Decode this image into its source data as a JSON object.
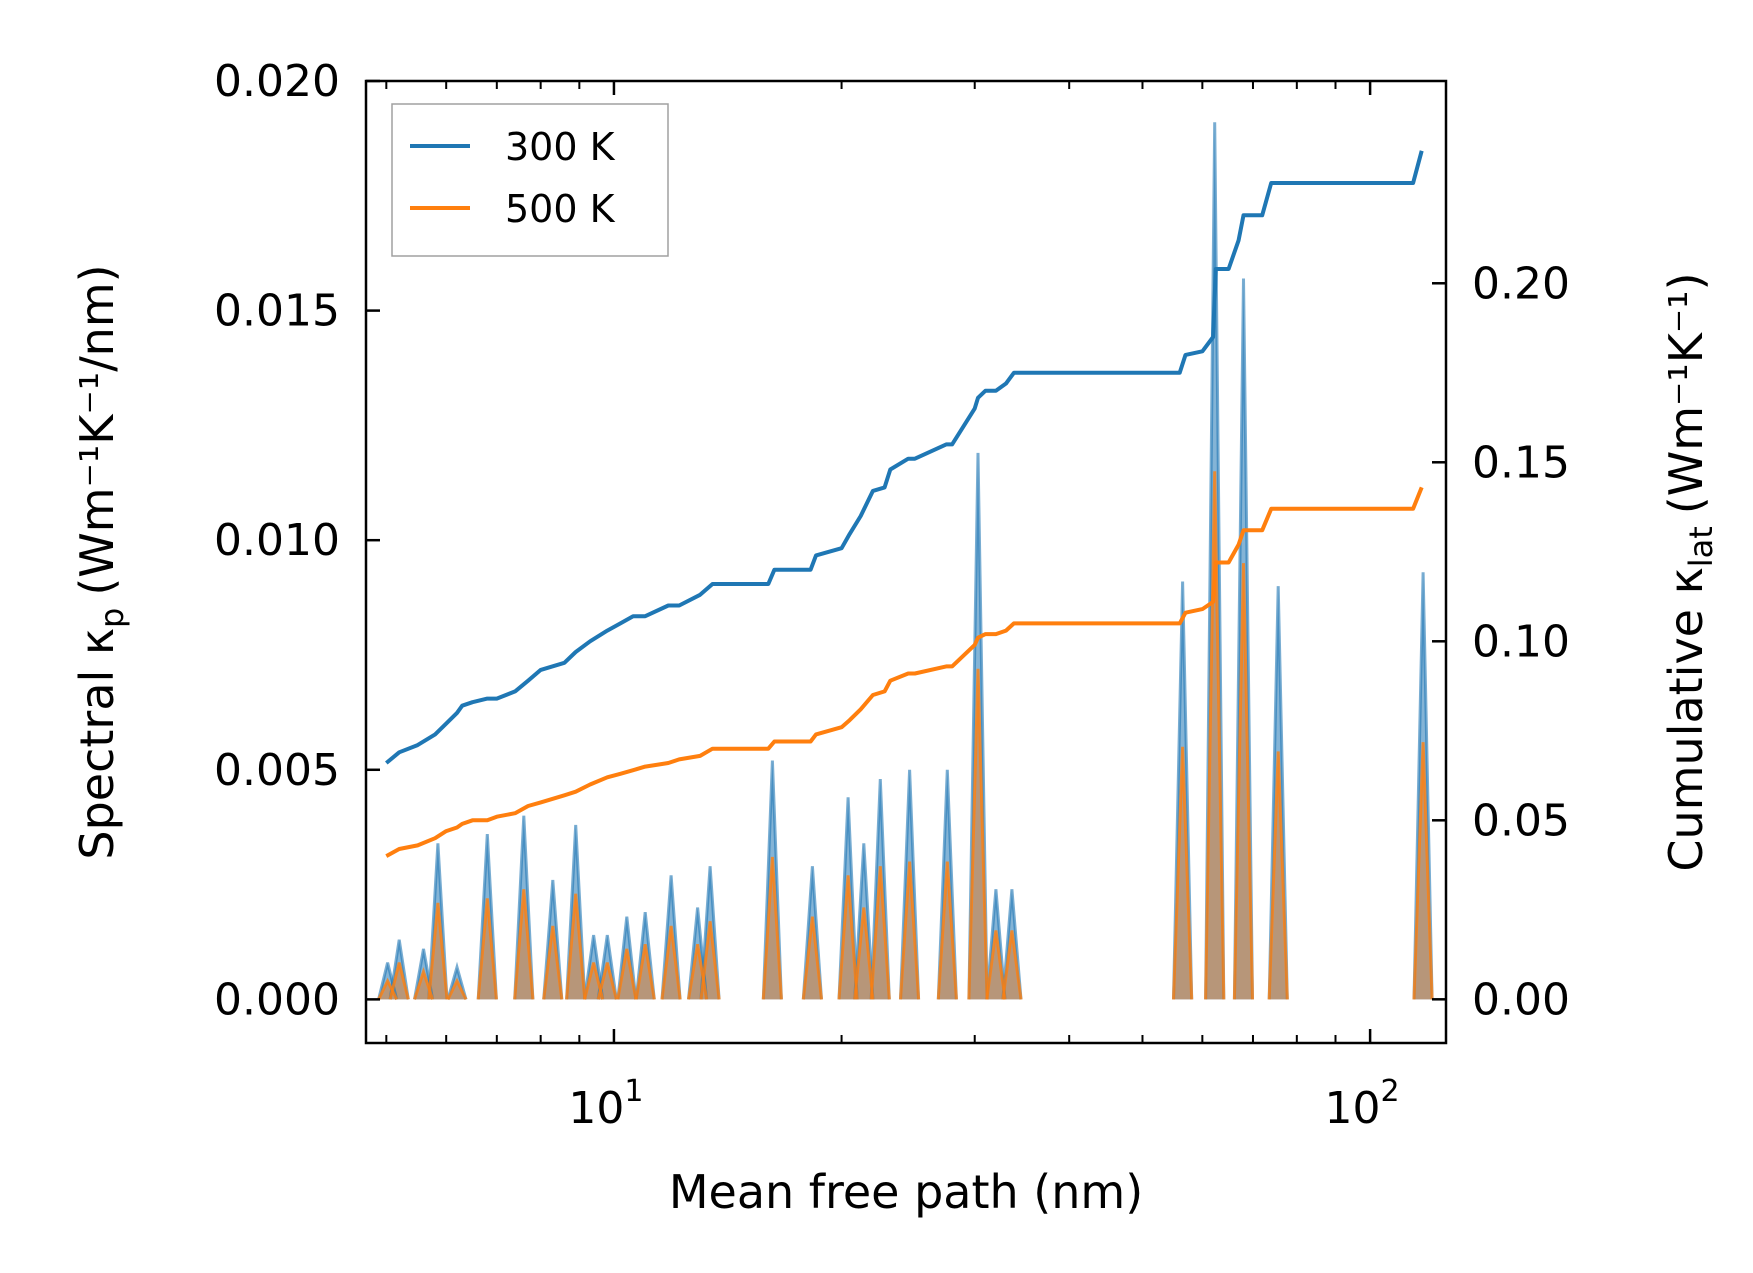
{
  "chart_data": {
    "type": "line",
    "xlabel": "Mean free path (nm)",
    "ylabel": "Spectral κ",
    "ylabel_sub": "p",
    "ylabel_units": "(Wm⁻¹K⁻¹/nm)",
    "y2label": "Cumulative κ",
    "y2label_sub": "lat",
    "y2label_units": "(Wm⁻¹K⁻¹)",
    "xscale": "log",
    "xlim": [
      4.7,
      126
    ],
    "ylim": [
      -0.00095,
      0.02
    ],
    "y2lim": [
      -0.0122,
      0.2565
    ],
    "x_ticks": [
      {
        "value": 10,
        "base": "10",
        "exp": "1"
      },
      {
        "value": 100,
        "base": "10",
        "exp": "2"
      }
    ],
    "y_ticks": [
      {
        "value": 0.0,
        "label": "0.000"
      },
      {
        "value": 0.005,
        "label": "0.005"
      },
      {
        "value": 0.01,
        "label": "0.010"
      },
      {
        "value": 0.015,
        "label": "0.015"
      },
      {
        "value": 0.02,
        "label": "0.020"
      }
    ],
    "y2_ticks": [
      {
        "value": 0.0,
        "label": "0.00"
      },
      {
        "value": 0.05,
        "label": "0.05"
      },
      {
        "value": 0.1,
        "label": "0.10"
      },
      {
        "value": 0.15,
        "label": "0.15"
      },
      {
        "value": 0.2,
        "label": "0.20"
      }
    ],
    "legend": {
      "position": "top-left",
      "entries": [
        {
          "label": "300 K",
          "color": "#1f77b4"
        },
        {
          "label": "500 K",
          "color": "#ff7f0e"
        }
      ]
    },
    "spectral_peaks": {
      "x": [
        5.02,
        5.2,
        5.6,
        5.85,
        6.2,
        6.8,
        7.6,
        8.3,
        8.9,
        9.4,
        9.8,
        10.4,
        11.0,
        11.9,
        12.9,
        13.4,
        16.2,
        18.3,
        20.4,
        21.4,
        22.5,
        24.6,
        27.6,
        30.3,
        32.0,
        33.6,
        56.5,
        62.3,
        68.0,
        75.6,
        117.5
      ],
      "series": [
        {
          "name": "300 K",
          "color": "#1f77b4",
          "values": [
            0.0008,
            0.0013,
            0.0011,
            0.0034,
            0.0007,
            0.0036,
            0.004,
            0.0026,
            0.0038,
            0.0014,
            0.0014,
            0.0018,
            0.0019,
            0.0027,
            0.002,
            0.0029,
            0.0052,
            0.0029,
            0.0044,
            0.0034,
            0.0048,
            0.005,
            0.005,
            0.0119,
            0.0024,
            0.0024,
            0.0091,
            0.0191,
            0.0157,
            0.009,
            0.0093
          ]
        },
        {
          "name": "500 K",
          "color": "#ff7f0e",
          "values": [
            0.0004,
            0.0008,
            0.0006,
            0.0021,
            0.0004,
            0.0022,
            0.0024,
            0.0016,
            0.0023,
            0.0008,
            0.0008,
            0.0011,
            0.0012,
            0.0016,
            0.0012,
            0.0017,
            0.0031,
            0.0018,
            0.0027,
            0.002,
            0.0029,
            0.003,
            0.003,
            0.0072,
            0.0015,
            0.0015,
            0.0055,
            0.0115,
            0.0095,
            0.0054,
            0.0056
          ]
        }
      ]
    },
    "cumulative": [
      {
        "name": "300 K",
        "color": "#1f77b4",
        "x": [
          5.0,
          5.2,
          5.5,
          5.8,
          6.0,
          6.2,
          6.3,
          6.5,
          6.8,
          7.0,
          7.4,
          7.7,
          8.0,
          8.6,
          8.9,
          9.3,
          9.8,
          10.2,
          10.6,
          11.0,
          11.8,
          12.2,
          13.0,
          13.5,
          16.0,
          16.3,
          18.2,
          18.5,
          20.0,
          20.5,
          21.2,
          22.0,
          22.8,
          23.2,
          24.5,
          25.0,
          27.5,
          28.0,
          30.0,
          30.3,
          31.0,
          32.0,
          33.0,
          33.8,
          35.0,
          56.0,
          57.0,
          60.0,
          62.0,
          62.5,
          65.0,
          67.0,
          68.0,
          72.0,
          74.0,
          75.5,
          111.0,
          114.0,
          117.0
        ],
        "values": [
          0.066,
          0.069,
          0.071,
          0.074,
          0.077,
          0.08,
          0.082,
          0.083,
          0.084,
          0.084,
          0.086,
          0.089,
          0.092,
          0.094,
          0.097,
          0.1,
          0.103,
          0.105,
          0.107,
          0.107,
          0.11,
          0.11,
          0.113,
          0.116,
          0.116,
          0.12,
          0.12,
          0.124,
          0.126,
          0.13,
          0.135,
          0.142,
          0.143,
          0.148,
          0.151,
          0.151,
          0.155,
          0.155,
          0.165,
          0.168,
          0.17,
          0.17,
          0.172,
          0.175,
          0.175,
          0.175,
          0.18,
          0.181,
          0.185,
          0.204,
          0.204,
          0.212,
          0.219,
          0.219,
          0.228,
          0.228,
          0.228,
          0.228,
          0.237
        ]
      },
      {
        "name": "500 K",
        "color": "#ff7f0e",
        "x": [
          5.0,
          5.2,
          5.5,
          5.8,
          6.0,
          6.2,
          6.3,
          6.5,
          6.8,
          7.0,
          7.4,
          7.7,
          8.0,
          8.6,
          8.9,
          9.3,
          9.8,
          10.2,
          10.6,
          11.0,
          11.8,
          12.2,
          13.0,
          13.5,
          16.0,
          16.3,
          18.2,
          18.5,
          20.0,
          20.5,
          21.2,
          22.0,
          22.8,
          23.2,
          24.5,
          25.0,
          27.5,
          28.0,
          30.0,
          30.3,
          31.0,
          32.0,
          33.0,
          33.8,
          35.0,
          56.0,
          57.0,
          60.0,
          62.0,
          62.5,
          65.0,
          67.0,
          68.0,
          72.0,
          74.0,
          75.5,
          111.0,
          114.0,
          117.0
        ],
        "values": [
          0.04,
          0.042,
          0.043,
          0.045,
          0.047,
          0.048,
          0.049,
          0.05,
          0.05,
          0.051,
          0.052,
          0.054,
          0.055,
          0.057,
          0.058,
          0.06,
          0.062,
          0.063,
          0.064,
          0.065,
          0.066,
          0.067,
          0.068,
          0.07,
          0.07,
          0.072,
          0.072,
          0.074,
          0.076,
          0.078,
          0.081,
          0.085,
          0.086,
          0.089,
          0.091,
          0.091,
          0.093,
          0.093,
          0.099,
          0.101,
          0.102,
          0.102,
          0.103,
          0.105,
          0.105,
          0.105,
          0.108,
          0.109,
          0.111,
          0.122,
          0.122,
          0.127,
          0.131,
          0.131,
          0.137,
          0.137,
          0.137,
          0.137,
          0.143
        ]
      }
    ]
  }
}
